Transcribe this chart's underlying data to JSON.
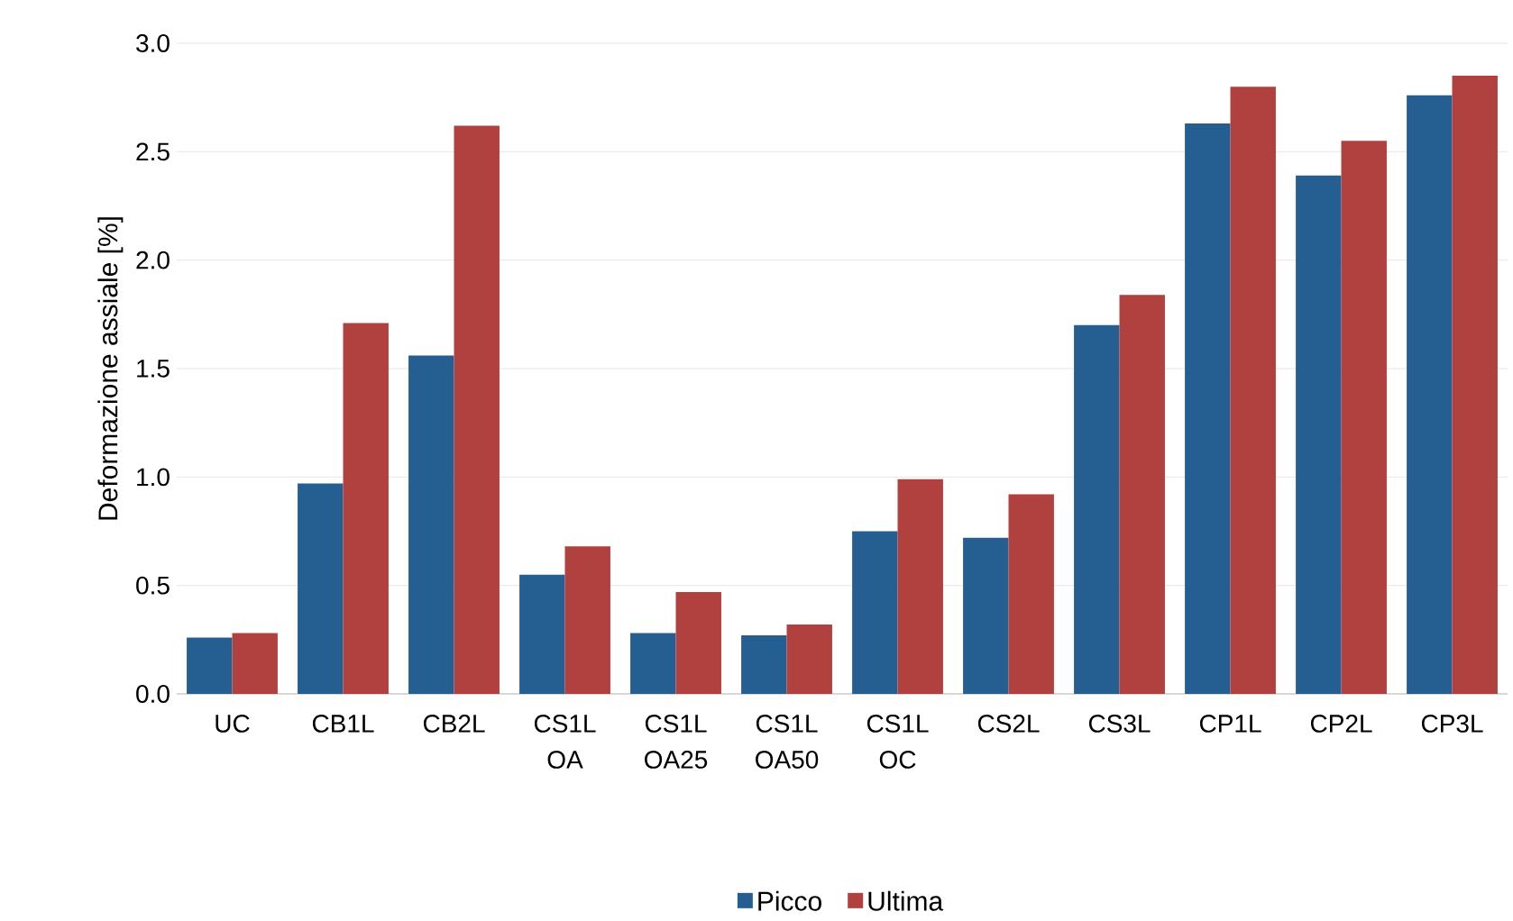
{
  "chart_data": {
    "type": "bar",
    "ylabel": "Deformazione assiale [%]",
    "categories": [
      "UC",
      "CB1L",
      "CB2L",
      "CS1L OA",
      "CS1L OA25",
      "CS1L OA50",
      "CS1L OC",
      "CS2L",
      "CS3L",
      "CP1L",
      "CP2L",
      "CP3L"
    ],
    "series": [
      {
        "name": "Picco",
        "color": "#255e91",
        "values": [
          0.26,
          0.97,
          1.56,
          0.55,
          0.28,
          0.27,
          0.75,
          0.72,
          1.7,
          2.63,
          2.39,
          2.76
        ]
      },
      {
        "name": "Ultima",
        "color": "#b0413e",
        "values": [
          0.28,
          1.71,
          2.62,
          0.68,
          0.47,
          0.32,
          0.99,
          0.92,
          1.84,
          2.8,
          2.55,
          2.85
        ]
      }
    ],
    "ylim": [
      0,
      3
    ],
    "yticks": [
      {
        "value": 0,
        "label": "0.0"
      },
      {
        "value": 0.5,
        "label": "0.5"
      },
      {
        "value": 1,
        "label": "1.0"
      },
      {
        "value": 1.5,
        "label": "1.5"
      },
      {
        "value": 2,
        "label": "2.0"
      },
      {
        "value": 2.5,
        "label": "2.5"
      },
      {
        "value": 3,
        "label": "3.0"
      }
    ],
    "grid": "y",
    "legend": "bottom"
  }
}
